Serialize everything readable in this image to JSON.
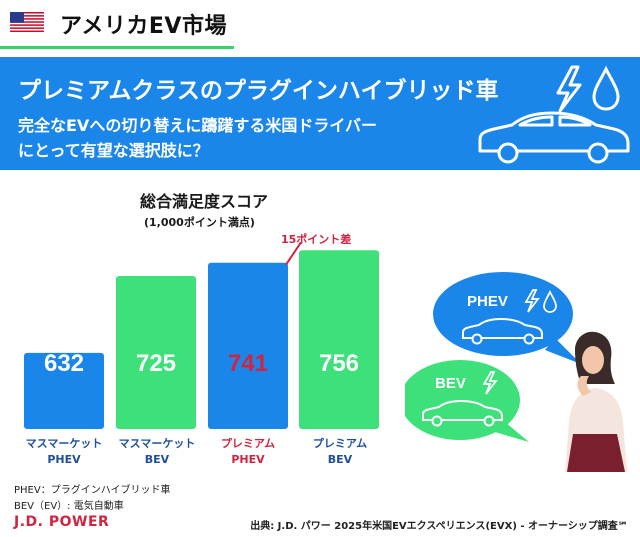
{
  "header": {
    "title": "アメリカEV市場"
  },
  "banner": {
    "title": "プレミアムクラスのプラグインハイブリッド車",
    "subtitle_line1": "完全なEVへの切り替えに躊躇する米国ドライバー",
    "subtitle_line2": "にとって有望な選択肢に？"
  },
  "chart_data": {
    "type": "bar",
    "title": "総合満足度スコア",
    "subtitle": "(1,000ポイント満点)",
    "categories": [
      [
        "マスマーケット",
        "PHEV"
      ],
      [
        "マスマーケット",
        "BEV"
      ],
      [
        "プレミアム",
        "PHEV"
      ],
      [
        "プレミアム",
        "BEV"
      ]
    ],
    "values": [
      632,
      725,
      741,
      756
    ],
    "value_labels": [
      "632",
      "725",
      "741",
      "756"
    ],
    "bar_colors": [
      "#1b86ea",
      "#3ee07a",
      "#1b86ea",
      "#3ee07a"
    ],
    "value_label_colors": [
      "#ffffff",
      "#ffffff",
      "#d0243f",
      "#ffffff"
    ],
    "category_label_colors": [
      "#1f4f9c",
      "#1f4f9c",
      "#d0243f",
      "#1f4f9c"
    ],
    "annotation": "15ポイント差",
    "annotation_color": "#d0243f",
    "ylim": [
      540,
      760
    ],
    "grid": false,
    "legend": "none"
  },
  "bubbles": {
    "phev_label": "PHEV",
    "bev_label": "BEV",
    "phev_color": "#1b86ea",
    "bev_color": "#3ee07a"
  },
  "footer": {
    "legend_phev": "PHEV：プラグインハイブリッド車",
    "legend_bev": "BEV（EV）: 電気自動車",
    "brand": "J.D. POWER",
    "source": "出典: J.D. パワー 2025年米国EVエクスペリエンス(EVX) - オーナーシップ調査℠"
  },
  "icons": [
    "us-flag-icon",
    "lightning-icon",
    "water-drop-icon",
    "car-icon",
    "person-icon"
  ]
}
